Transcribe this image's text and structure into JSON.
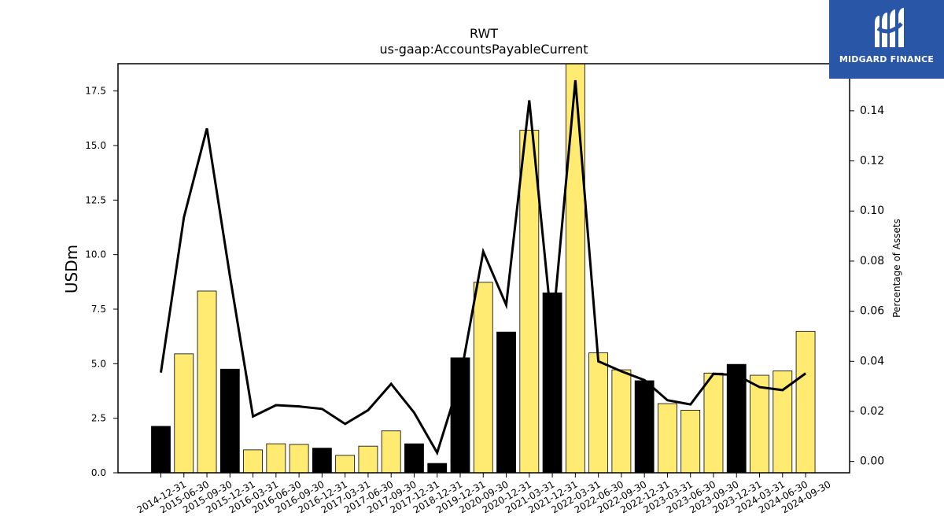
{
  "chart_data": {
    "type": "bar",
    "title": "RWT",
    "subtitle": "us-gaap:AccountsPayableCurrent",
    "ylabel": "USDm",
    "y2label": "Percentage of Assets",
    "categories": [
      "2014-12-31",
      "2015-06-30",
      "2015-09-30",
      "2015-12-31",
      "2016-03-31",
      "2016-06-30",
      "2016-09-30",
      "2016-12-31",
      "2017-03-31",
      "2017-06-30",
      "2017-09-30",
      "2017-12-31",
      "2018-12-31",
      "2019-12-31",
      "2020-09-30",
      "2020-12-31",
      "2021-03-31",
      "2021-12-31",
      "2022-03-31",
      "2022-06-30",
      "2022-09-30",
      "2022-12-31",
      "2023-03-31",
      "2023-06-30",
      "2023-09-30",
      "2023-12-31",
      "2024-03-31",
      "2024-06-30",
      "2024-09-30"
    ],
    "series": [
      {
        "type": "bar",
        "values": [
          2.13,
          5.45,
          8.33,
          4.75,
          1.05,
          1.33,
          1.3,
          1.13,
          0.8,
          1.22,
          1.92,
          1.33,
          0.43,
          5.27,
          8.73,
          6.45,
          15.7,
          8.25,
          18.75,
          5.5,
          4.72,
          4.22,
          3.17,
          2.87,
          4.57,
          4.97,
          4.47,
          4.67,
          6.48
        ],
        "colors": [
          "#000000",
          "#ffeb72",
          "#ffeb72",
          "#000000",
          "#ffeb72",
          "#ffeb72",
          "#ffeb72",
          "#000000",
          "#ffeb72",
          "#ffeb72",
          "#ffeb72",
          "#000000",
          "#000000",
          "#000000",
          "#ffeb72",
          "#000000",
          "#ffeb72",
          "#000000",
          "#ffeb72",
          "#ffeb72",
          "#ffeb72",
          "#000000",
          "#ffeb72",
          "#ffeb72",
          "#ffeb72",
          "#000000",
          "#ffeb72",
          "#ffeb72",
          "#ffeb72"
        ]
      },
      {
        "type": "line",
        "axis": "right",
        "values": [
          0.0355,
          0.0975,
          0.133,
          0.074,
          0.018,
          0.0225,
          0.022,
          0.021,
          0.015,
          0.0205,
          0.031,
          0.0195,
          0.0035,
          0.033,
          0.0838,
          0.0625,
          0.1442,
          0.052,
          0.1522,
          0.04,
          0.036,
          0.0325,
          0.0245,
          0.0228,
          0.035,
          0.0345,
          0.0297,
          0.0285,
          0.0352
        ],
        "color": "#000000"
      }
    ],
    "ylim": [
      0,
      18.75
    ],
    "y2lim": [
      -0.0045,
      0.1588
    ],
    "yticks": [
      "0.0",
      "2.5",
      "5.0",
      "7.5",
      "10.0",
      "12.5",
      "15.0",
      "17.5"
    ],
    "y2ticks": [
      "0.00",
      "0.02",
      "0.04",
      "0.06",
      "0.08",
      "0.10",
      "0.12",
      "0.14"
    ],
    "grid": false,
    "legend": "none"
  },
  "logo": {
    "text": "MIDGARD FINANCE"
  }
}
